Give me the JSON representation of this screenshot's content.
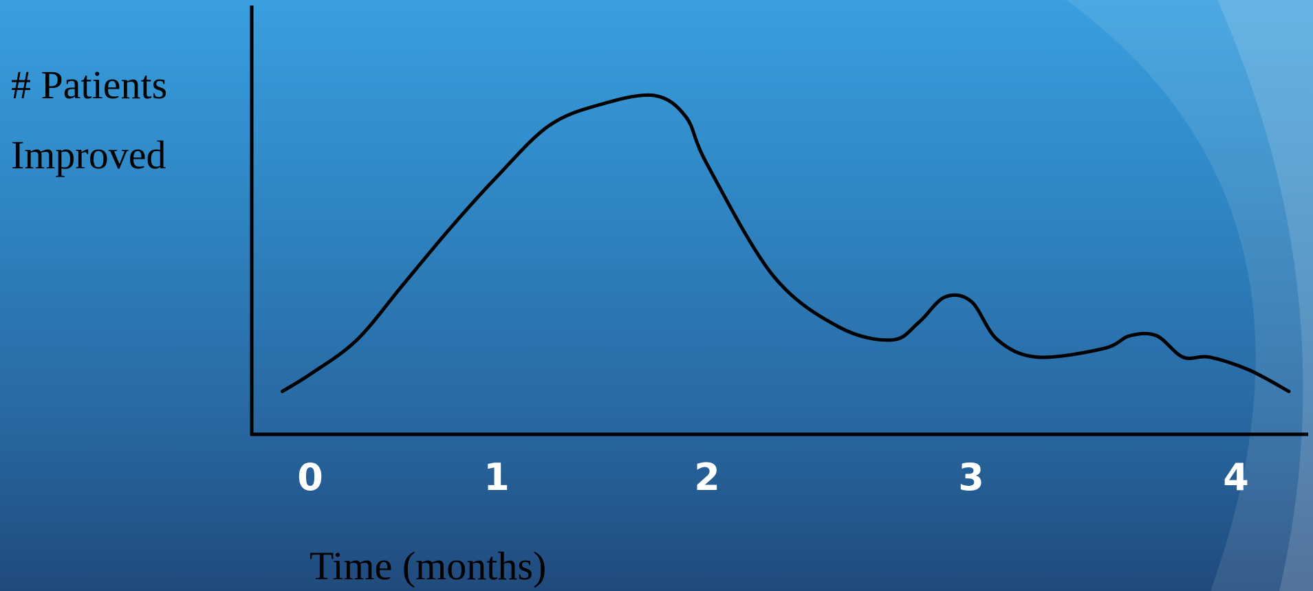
{
  "colors": {
    "background_top": "#399fdf",
    "background_bottom": "#204a7c",
    "axis": "#000000",
    "curve": "#000000",
    "axis_label": "#000000",
    "tick_label": "#ffffff"
  },
  "chart_data": {
    "type": "line",
    "title": "",
    "ylabel_lines": [
      "# Patients",
      "Improved"
    ],
    "xlabel": "Time (months)",
    "x_ticks": [
      "0",
      "1",
      "2",
      "3",
      "4"
    ],
    "xlim": [
      -0.2,
      4.2
    ],
    "ylim": [
      0,
      100
    ],
    "grid": false,
    "legend": "none",
    "y_tick_labels_shown": false,
    "series": [
      {
        "name": "",
        "x": [
          -0.15,
          0.0,
          0.25,
          0.5,
          0.75,
          1.0,
          1.25,
          1.5,
          1.75,
          1.9,
          2.0,
          2.25,
          2.5,
          2.7,
          2.8,
          2.9,
          3.0,
          3.1,
          3.25,
          3.5,
          3.6,
          3.7,
          3.8,
          3.9,
          4.05,
          4.2
        ],
        "y": [
          10,
          14,
          22,
          35,
          48,
          60,
          72,
          77,
          79,
          74,
          63,
          37,
          25,
          22,
          26,
          32,
          31,
          22,
          18,
          20,
          23,
          23,
          18,
          18,
          15,
          10
        ]
      }
    ]
  }
}
